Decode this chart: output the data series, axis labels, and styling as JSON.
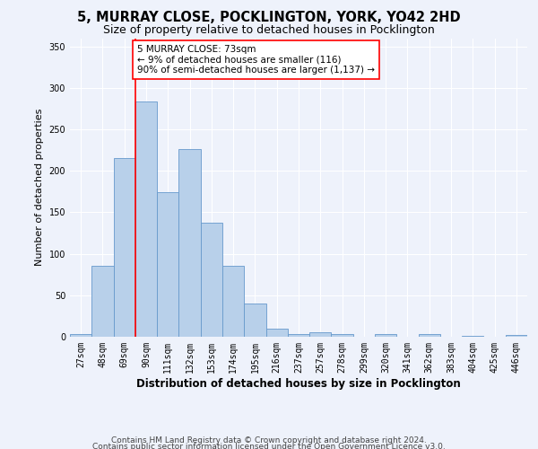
{
  "title": "5, MURRAY CLOSE, POCKLINGTON, YORK, YO42 2HD",
  "subtitle": "Size of property relative to detached houses in Pocklington",
  "xlabel": "Distribution of detached houses by size in Pocklington",
  "ylabel": "Number of detached properties",
  "categories": [
    "27sqm",
    "48sqm",
    "69sqm",
    "90sqm",
    "111sqm",
    "132sqm",
    "153sqm",
    "174sqm",
    "195sqm",
    "216sqm",
    "237sqm",
    "257sqm",
    "278sqm",
    "299sqm",
    "320sqm",
    "341sqm",
    "362sqm",
    "383sqm",
    "404sqm",
    "425sqm",
    "446sqm"
  ],
  "values": [
    3,
    86,
    216,
    284,
    174,
    226,
    137,
    86,
    40,
    10,
    3,
    5,
    3,
    0,
    3,
    0,
    3,
    0,
    1,
    0,
    2
  ],
  "bar_color": "#b8d0ea",
  "bar_edge_color": "#6699cc",
  "bar_width": 1.0,
  "vline_x": 2.5,
  "vline_color": "red",
  "annotation_text": "5 MURRAY CLOSE: 73sqm\n← 9% of detached houses are smaller (116)\n90% of semi-detached houses are larger (1,137) →",
  "annotation_box_color": "white",
  "annotation_box_edge": "red",
  "ylim": [
    0,
    360
  ],
  "yticks": [
    0,
    50,
    100,
    150,
    200,
    250,
    300,
    350
  ],
  "footer_line1": "Contains HM Land Registry data © Crown copyright and database right 2024.",
  "footer_line2": "Contains public sector information licensed under the Open Government Licence v3.0.",
  "bg_color": "#eef2fb",
  "grid_color": "#ffffff",
  "title_fontsize": 10.5,
  "subtitle_fontsize": 9,
  "xlabel_fontsize": 8.5,
  "ylabel_fontsize": 8,
  "tick_fontsize": 7,
  "footer_fontsize": 6.5,
  "annotation_fontsize": 7.5
}
